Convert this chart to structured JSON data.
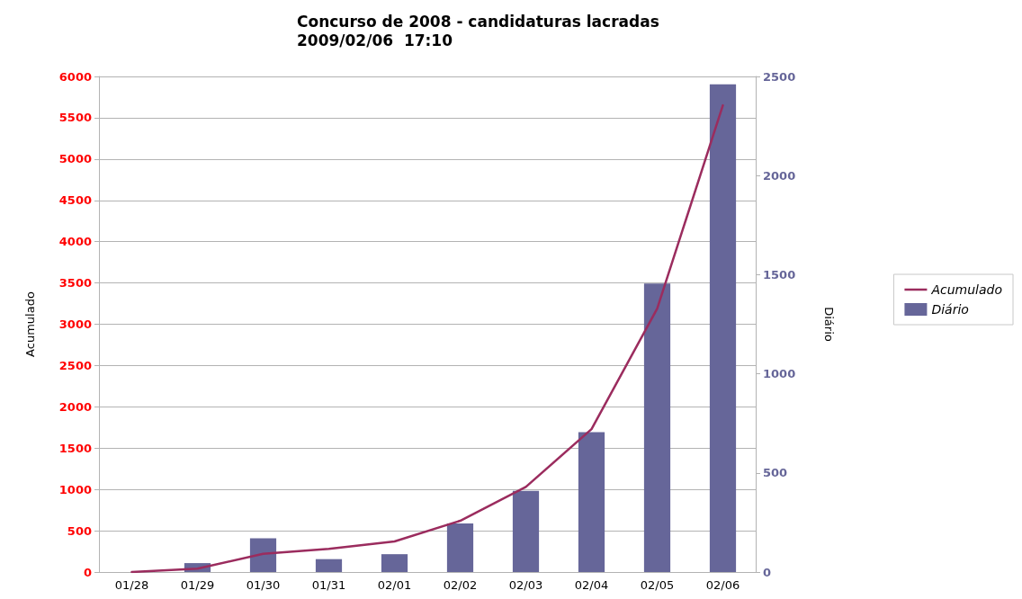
{
  "chart_data": {
    "type": "bar",
    "title": "Concurso de 2008 - candidaturas lacradas",
    "subtitle": "2009/02/06  17:10",
    "ylabel": "Acumulado",
    "y2label": "Diário",
    "categories": [
      "01/28",
      "01/29",
      "01/30",
      "01/31",
      "02/01",
      "02/02",
      "02/03",
      "02/04",
      "02/05",
      "02/06"
    ],
    "series": [
      {
        "name": "Acumulado",
        "type": "line",
        "color": "#9b2c5e",
        "values": [
          0,
          40,
          220,
          280,
          370,
          620,
          1030,
          1730,
          3190,
          5650
        ]
      },
      {
        "name": "Diário",
        "axis": "y2",
        "color": "#666699",
        "values": [
          0,
          45,
          170,
          65,
          90,
          245,
          410,
          705,
          1455,
          2460
        ]
      }
    ],
    "ylim": [
      0,
      6000
    ],
    "yticks": [
      0,
      500,
      1000,
      1500,
      2000,
      2500,
      3000,
      3500,
      4000,
      4500,
      5000,
      5500,
      6000
    ],
    "y2lim": [
      0,
      2500
    ],
    "y2ticks": [
      0,
      500,
      1000,
      1500,
      2000,
      2500
    ],
    "grid": "y",
    "legend": "right",
    "marker": "none",
    "line_style": "solid"
  }
}
